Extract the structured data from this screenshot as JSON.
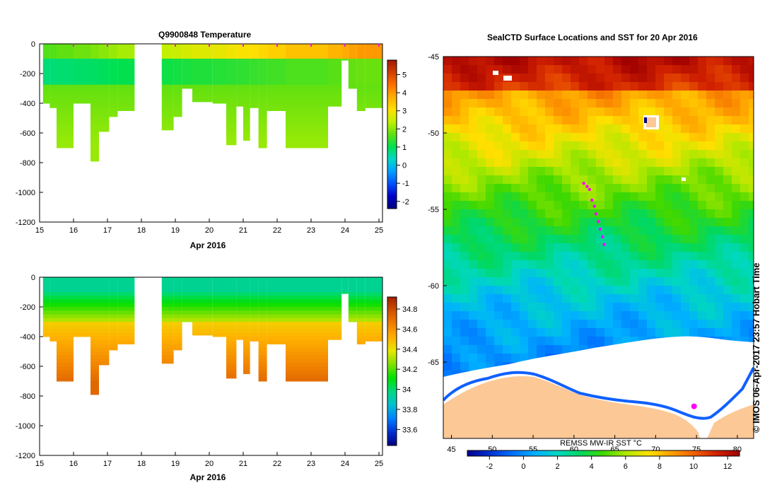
{
  "colors": {
    "temperature_scale": [
      "#000080",
      "#0000c8",
      "#0050ff",
      "#00a0ff",
      "#00d8c8",
      "#00e050",
      "#60e010",
      "#c0f000",
      "#ffe000",
      "#ffb000",
      "#ff7000",
      "#d04000",
      "#a01800"
    ],
    "salinity_scale": [
      "#000080",
      "#0030d0",
      "#0080ff",
      "#00c0d0",
      "#00d880",
      "#00e000",
      "#80e000",
      "#e8e800",
      "#ffb000",
      "#f08000",
      "#d05000",
      "#a02000"
    ],
    "sst_scale": [
      "#000090",
      "#0030d0",
      "#0070ff",
      "#00b0ff",
      "#00d8c0",
      "#00d860",
      "#40d800",
      "#b0e800",
      "#ffe000",
      "#ffa000",
      "#f06000",
      "#d02000",
      "#a00000"
    ],
    "land": "#fcc896",
    "track": "#ff00ff"
  },
  "chart_data": [
    {
      "type": "heatmap",
      "title": "Q9900848  Temperature",
      "xlabel": "Apr 2016",
      "ylabel": "",
      "xlim": [
        15,
        25
      ],
      "ylim": [
        -1200,
        0
      ],
      "xticks": [
        "15",
        "16",
        "17",
        "18",
        "19",
        "20",
        "21",
        "22",
        "23",
        "24",
        "25"
      ],
      "yticks": [
        "0",
        "-200",
        "-400",
        "-600",
        "-800",
        "-1000",
        "-1200"
      ],
      "colorbar": {
        "min": -2.4,
        "max": 5.8,
        "ticks": [
          "5",
          "4",
          "3",
          "2",
          "1",
          "0",
          "-1",
          "-2"
        ],
        "values": [
          5,
          4,
          3,
          2,
          1,
          0,
          -1,
          -2
        ]
      },
      "profile_markers_day": [
        16.0,
        17.0,
        19.0,
        20.0,
        21.0,
        22.0,
        23.0,
        24.0,
        25.0
      ],
      "profiles": [
        {
          "x0": 15.1,
          "x1": 15.3,
          "depth": 400,
          "surface": 1.6
        },
        {
          "x0": 15.3,
          "x1": 15.5,
          "depth": 430,
          "surface": 1.6
        },
        {
          "x0": 15.5,
          "x1": 16.0,
          "depth": 700,
          "surface": 1.7
        },
        {
          "x0": 16.0,
          "x1": 16.5,
          "depth": 400,
          "surface": 1.8
        },
        {
          "x0": 16.5,
          "x1": 16.75,
          "depth": 790,
          "surface": 1.9
        },
        {
          "x0": 16.75,
          "x1": 17.05,
          "depth": 590,
          "surface": 2.0
        },
        {
          "x0": 17.05,
          "x1": 17.3,
          "depth": 490,
          "surface": 2.1
        },
        {
          "x0": 17.3,
          "x1": 17.8,
          "depth": 450,
          "surface": 2.2
        },
        {
          "x0": 18.6,
          "x1": 18.95,
          "depth": 580,
          "surface": 2.4
        },
        {
          "x0": 18.95,
          "x1": 19.2,
          "depth": 490,
          "surface": 2.5
        },
        {
          "x0": 19.2,
          "x1": 19.5,
          "depth": 300,
          "surface": 2.6
        },
        {
          "x0": 19.5,
          "x1": 20.1,
          "depth": 390,
          "surface": 2.7
        },
        {
          "x0": 20.1,
          "x1": 20.5,
          "depth": 400,
          "surface": 2.8
        },
        {
          "x0": 20.5,
          "x1": 20.8,
          "depth": 680,
          "surface": 2.9
        },
        {
          "x0": 20.8,
          "x1": 21.0,
          "depth": 420,
          "surface": 3.0
        },
        {
          "x0": 21.0,
          "x1": 21.2,
          "depth": 650,
          "surface": 3.0
        },
        {
          "x0": 21.2,
          "x1": 21.45,
          "depth": 430,
          "surface": 3.1
        },
        {
          "x0": 21.45,
          "x1": 21.7,
          "depth": 700,
          "surface": 3.2
        },
        {
          "x0": 21.7,
          "x1": 22.25,
          "depth": 450,
          "surface": 3.3
        },
        {
          "x0": 22.25,
          "x1": 23.5,
          "depth": 700,
          "surface": 3.5
        },
        {
          "x0": 23.5,
          "x1": 23.9,
          "depth": 420,
          "surface": 3.7
        },
        {
          "x0": 23.9,
          "x1": 24.1,
          "depth": 110,
          "surface": 3.8
        },
        {
          "x0": 24.1,
          "x1": 24.35,
          "depth": 300,
          "surface": 3.9
        },
        {
          "x0": 24.35,
          "x1": 24.6,
          "depth": 450,
          "surface": 4.0
        },
        {
          "x0": 24.6,
          "x1": 25.1,
          "depth": 430,
          "surface": 4.0
        }
      ]
    },
    {
      "type": "heatmap",
      "title": "",
      "xlabel": "Apr 2016",
      "ylabel": "",
      "xlim": [
        15,
        25
      ],
      "ylim": [
        -1200,
        0
      ],
      "xticks": [
        "15",
        "16",
        "17",
        "18",
        "19",
        "20",
        "21",
        "22",
        "23",
        "24",
        "25"
      ],
      "yticks": [
        "0",
        "-200",
        "-400",
        "-600",
        "-800",
        "-1000",
        "-1200"
      ],
      "colorbar": {
        "min": 33.44,
        "max": 34.92,
        "ticks": [
          "34.8",
          "34.6",
          "34.4",
          "34.2",
          "34",
          "33.8",
          "33.6"
        ],
        "values": [
          34.8,
          34.6,
          34.4,
          34.2,
          34.0,
          33.8,
          33.6
        ]
      },
      "profiles_ref": "same as temperature"
    },
    {
      "type": "heatmap",
      "title": "SealCTD Surface Locations and SST for 20 Apr 2016",
      "xlabel": "",
      "ylabel": "",
      "xlim": [
        44,
        82
      ],
      "ylim": [
        -70,
        -45
      ],
      "xticks": [
        "45",
        "50",
        "55",
        "60",
        "65",
        "70",
        "75",
        "80"
      ],
      "yticks": [
        "-45",
        "-50",
        "-55",
        "-60",
        "-65"
      ],
      "track_points": [
        [
          61.2,
          -53.3
        ],
        [
          61.6,
          -53.5
        ],
        [
          61.9,
          -53.7
        ],
        [
          62.2,
          -54.4
        ],
        [
          62.5,
          -54.8
        ],
        [
          62.7,
          -55.3
        ],
        [
          63.0,
          -55.8
        ],
        [
          63.2,
          -56.3
        ],
        [
          63.5,
          -56.8
        ],
        [
          63.7,
          -57.3
        ]
      ],
      "track_cluster_south": [
        74.7,
        -67.9
      ],
      "sst_colorbar": {
        "label": "REMSS MW-IR SST °C",
        "min": -3.3,
        "max": 12.7,
        "ticks": [
          "-2",
          "0",
          "2",
          "4",
          "6",
          "8",
          "10",
          "12"
        ],
        "values": [
          -2,
          0,
          2,
          4,
          6,
          8,
          10,
          12
        ]
      }
    }
  ],
  "credit": "© IMOS 06-Apr-2017 23:57 Hobart Time"
}
